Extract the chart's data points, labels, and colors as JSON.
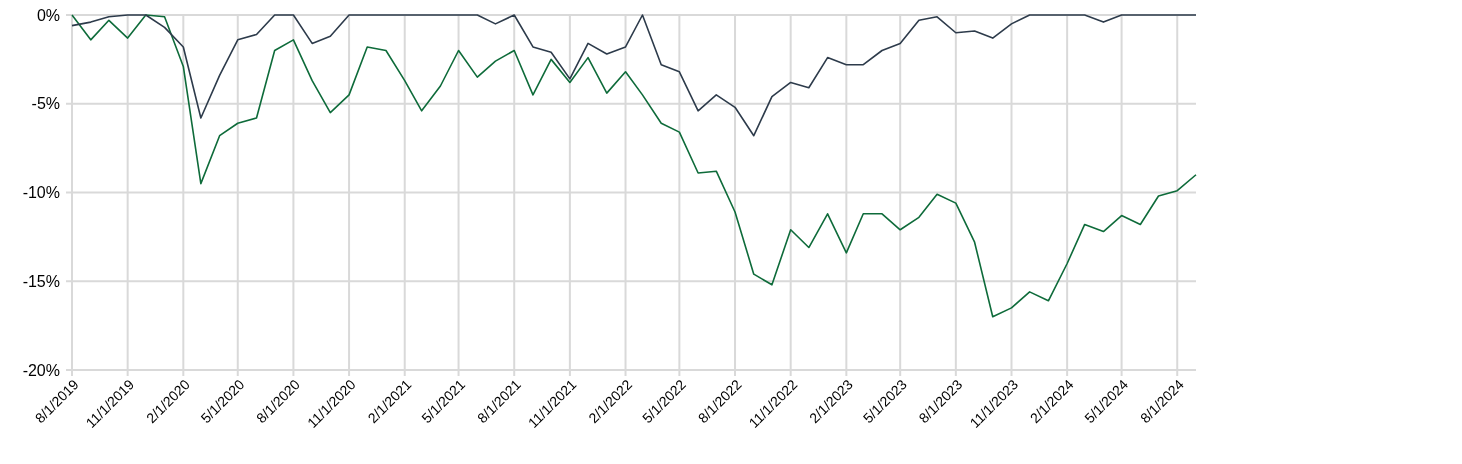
{
  "chart_data": {
    "type": "line",
    "x": [
      "2019-08",
      "2019-09",
      "2019-10",
      "2019-11",
      "2019-12",
      "2020-01",
      "2020-02",
      "2020-03",
      "2020-04",
      "2020-05",
      "2020-06",
      "2020-07",
      "2020-08",
      "2020-09",
      "2020-10",
      "2020-11",
      "2020-12",
      "2021-01",
      "2021-02",
      "2021-03",
      "2021-04",
      "2021-05",
      "2021-06",
      "2021-07",
      "2021-08",
      "2021-09",
      "2021-10",
      "2021-11",
      "2021-12",
      "2022-01",
      "2022-02",
      "2022-03",
      "2022-04",
      "2022-05",
      "2022-06",
      "2022-07",
      "2022-08",
      "2022-09",
      "2022-10",
      "2022-11",
      "2022-12",
      "2023-01",
      "2023-02",
      "2023-03",
      "2023-04",
      "2023-05",
      "2023-06",
      "2023-07",
      "2023-08",
      "2023-09",
      "2023-10",
      "2023-11",
      "2023-12",
      "2024-01",
      "2024-02",
      "2024-03",
      "2024-04",
      "2024-05",
      "2024-06",
      "2024-07",
      "2024-08",
      "2024-09"
    ],
    "series": [
      {
        "color": "#0e6b3a",
        "values": [
          0,
          -1.4,
          -0.3,
          -1.3,
          0,
          -0.1,
          -2.9,
          -9.5,
          -6.8,
          -6.1,
          -5.8,
          -2.0,
          -1.4,
          -3.7,
          -5.5,
          -4.5,
          -1.8,
          -2.0,
          -3.7,
          -5.4,
          -4.0,
          -2.0,
          -3.5,
          -2.6,
          -2.0,
          -4.5,
          -2.5,
          -3.8,
          -2.4,
          -4.4,
          -3.2,
          -4.5,
          -6.1,
          -6.6,
          -8.9,
          -8.8,
          -11.1,
          -14.6,
          -15.2,
          -12.1,
          -13.1,
          -11.2,
          -13.4,
          -11.2,
          -11.2,
          -12.1,
          -11.4,
          -10.1,
          -10.6,
          -12.8,
          -17.0,
          -16.5,
          -15.6,
          -16.1,
          -14.0,
          -11.8,
          -12.2,
          -11.3,
          -11.8,
          -10.2,
          -9.9,
          -9.0
        ]
      },
      {
        "color": "#2d3b4b",
        "values": [
          -0.6,
          -0.4,
          -0.1,
          0,
          0,
          -0.7,
          -1.8,
          -5.8,
          -3.4,
          -1.4,
          -1.1,
          0,
          0,
          -1.6,
          -1.2,
          0,
          0,
          0,
          0,
          0,
          0,
          0,
          0,
          -0.5,
          0,
          -1.8,
          -2.1,
          -3.6,
          -1.6,
          -2.2,
          -1.8,
          0,
          -2.8,
          -3.2,
          -5.4,
          -4.5,
          -5.2,
          -6.8,
          -4.6,
          -3.8,
          -4.1,
          -2.4,
          -2.8,
          -2.8,
          -2.0,
          -1.6,
          -0.3,
          -0.1,
          -1.0,
          -0.9,
          -1.3,
          -0.5,
          0,
          0,
          0,
          0,
          -0.4,
          0,
          0,
          0,
          0,
          0
        ]
      }
    ],
    "xlim": [
      "2019-08-01",
      "2024-09-01"
    ],
    "xticks": [
      {
        "value": "2019-08-01",
        "label": "8/1/2019"
      },
      {
        "value": "2019-11-01",
        "label": "11/1/2019"
      },
      {
        "value": "2020-02-01",
        "label": "2/1/2020"
      },
      {
        "value": "2020-05-01",
        "label": "5/1/2020"
      },
      {
        "value": "2020-08-01",
        "label": "8/1/2020"
      },
      {
        "value": "2020-11-01",
        "label": "11/1/2020"
      },
      {
        "value": "2021-02-01",
        "label": "2/1/2021"
      },
      {
        "value": "2021-05-01",
        "label": "5/1/2021"
      },
      {
        "value": "2021-08-01",
        "label": "8/1/2021"
      },
      {
        "value": "2021-11-01",
        "label": "11/1/2021"
      },
      {
        "value": "2022-02-01",
        "label": "2/1/2022"
      },
      {
        "value": "2022-05-01",
        "label": "5/1/2022"
      },
      {
        "value": "2022-08-01",
        "label": "8/1/2022"
      },
      {
        "value": "2022-11-01",
        "label": "11/1/2022"
      },
      {
        "value": "2023-02-01",
        "label": "2/1/2023"
      },
      {
        "value": "2023-05-01",
        "label": "5/1/2023"
      },
      {
        "value": "2023-08-01",
        "label": "8/1/2023"
      },
      {
        "value": "2023-11-01",
        "label": "11/1/2023"
      },
      {
        "value": "2024-02-01",
        "label": "2/1/2024"
      },
      {
        "value": "2024-05-01",
        "label": "5/1/2024"
      },
      {
        "value": "2024-08-01",
        "label": "8/1/2024"
      }
    ],
    "ylim": [
      -20,
      0
    ],
    "yticks": [
      {
        "value": 0,
        "label": "0%"
      },
      {
        "value": -5,
        "label": "-5%"
      },
      {
        "value": -10,
        "label": "-10%"
      },
      {
        "value": -15,
        "label": "-15%"
      },
      {
        "value": -20,
        "label": "-20%"
      }
    ],
    "grid": true,
    "marker": "none",
    "line_style": "solid"
  }
}
